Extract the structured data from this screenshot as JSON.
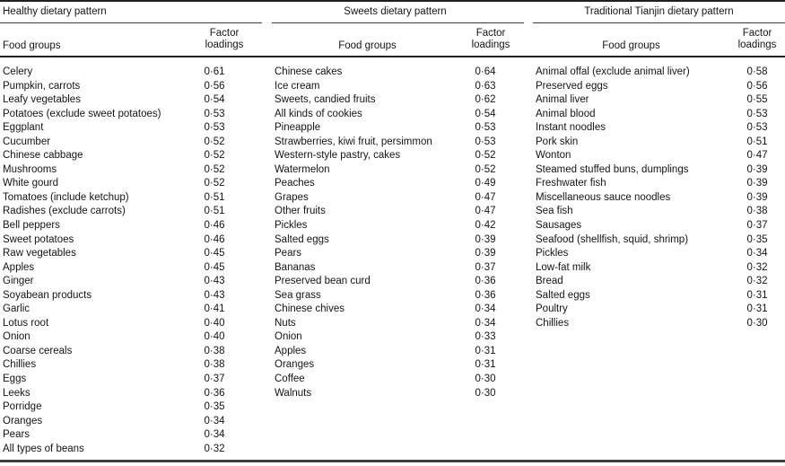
{
  "table": {
    "groups": [
      {
        "title": "Healthy dietary pattern",
        "food_header": "Food groups",
        "loading_header": "Factor loadings",
        "rows": [
          {
            "food": "Celery",
            "loading": "0·61"
          },
          {
            "food": "Pumpkin, carrots",
            "loading": "0·56"
          },
          {
            "food": "Leafy vegetables",
            "loading": "0·54"
          },
          {
            "food": "Potatoes (exclude sweet potatoes)",
            "loading": "0·53"
          },
          {
            "food": "Eggplant",
            "loading": "0·53"
          },
          {
            "food": "Cucumber",
            "loading": "0·52"
          },
          {
            "food": "Chinese cabbage",
            "loading": "0·52"
          },
          {
            "food": "Mushrooms",
            "loading": "0·52"
          },
          {
            "food": "White gourd",
            "loading": "0·52"
          },
          {
            "food": "Tomatoes (include ketchup)",
            "loading": "0·51"
          },
          {
            "food": "Radishes (exclude carrots)",
            "loading": "0·51"
          },
          {
            "food": "Bell peppers",
            "loading": "0·46"
          },
          {
            "food": "Sweet potatoes",
            "loading": "0·46"
          },
          {
            "food": "Raw vegetables",
            "loading": "0·45"
          },
          {
            "food": "Apples",
            "loading": "0·45"
          },
          {
            "food": "Ginger",
            "loading": "0·43"
          },
          {
            "food": "Soyabean products",
            "loading": "0·43"
          },
          {
            "food": "Garlic",
            "loading": "0·41"
          },
          {
            "food": "Lotus root",
            "loading": "0·40"
          },
          {
            "food": "Onion",
            "loading": "0·40"
          },
          {
            "food": "Coarse cereals",
            "loading": "0·38"
          },
          {
            "food": "Chillies",
            "loading": "0·38"
          },
          {
            "food": "Eggs",
            "loading": "0·37"
          },
          {
            "food": "Leeks",
            "loading": "0·36"
          },
          {
            "food": "Porridge",
            "loading": "0·35"
          },
          {
            "food": "Oranges",
            "loading": "0·34"
          },
          {
            "food": "Pears",
            "loading": "0·34"
          },
          {
            "food": "All types of beans",
            "loading": "0·32"
          }
        ]
      },
      {
        "title": "Sweets dietary pattern",
        "food_header": "Food groups",
        "loading_header": "Factor loadings",
        "rows": [
          {
            "food": "Chinese cakes",
            "loading": "0·64"
          },
          {
            "food": "Ice cream",
            "loading": "0·63"
          },
          {
            "food": "Sweets, candied fruits",
            "loading": "0·62"
          },
          {
            "food": "All kinds of cookies",
            "loading": "0·54"
          },
          {
            "food": "Pineapple",
            "loading": "0·53"
          },
          {
            "food": "Strawberries, kiwi fruit, persimmon",
            "loading": "0·53"
          },
          {
            "food": "Western-style pastry, cakes",
            "loading": "0·52"
          },
          {
            "food": "Watermelon",
            "loading": "0·52"
          },
          {
            "food": "Peaches",
            "loading": "0·49"
          },
          {
            "food": "Grapes",
            "loading": "0·47"
          },
          {
            "food": "Other fruits",
            "loading": "0·47"
          },
          {
            "food": "Pickles",
            "loading": "0·42"
          },
          {
            "food": "Salted eggs",
            "loading": "0·39"
          },
          {
            "food": "Pears",
            "loading": "0·39"
          },
          {
            "food": "Bananas",
            "loading": "0·37"
          },
          {
            "food": "Preserved bean curd",
            "loading": "0·36"
          },
          {
            "food": "Sea grass",
            "loading": "0·36"
          },
          {
            "food": "Chinese chives",
            "loading": "0·34"
          },
          {
            "food": "Nuts",
            "loading": "0·34"
          },
          {
            "food": "Onion",
            "loading": "0·33"
          },
          {
            "food": "Apples",
            "loading": "0·31"
          },
          {
            "food": "Oranges",
            "loading": "0·31"
          },
          {
            "food": "Coffee",
            "loading": "0·30"
          },
          {
            "food": "Walnuts",
            "loading": "0·30"
          }
        ]
      },
      {
        "title": "Traditional Tianjin dietary pattern",
        "food_header": "Food groups",
        "loading_header": "Factor loadings",
        "rows": [
          {
            "food": "Animal offal (exclude animal liver)",
            "loading": "0·58"
          },
          {
            "food": "Preserved eggs",
            "loading": "0·56"
          },
          {
            "food": "Animal liver",
            "loading": "0·55"
          },
          {
            "food": "Animal blood",
            "loading": "0·53"
          },
          {
            "food": "Instant noodles",
            "loading": "0·53"
          },
          {
            "food": "Pork skin",
            "loading": "0·51"
          },
          {
            "food": "Wonton",
            "loading": "0·47"
          },
          {
            "food": "Steamed stuffed buns, dumplings",
            "loading": "0·39"
          },
          {
            "food": "Freshwater fish",
            "loading": "0·39"
          },
          {
            "food": "Miscellaneous sauce noodles",
            "loading": "0·39"
          },
          {
            "food": "Sea fish",
            "loading": "0·38"
          },
          {
            "food": "Sausages",
            "loading": "0·37"
          },
          {
            "food": "Seafood (shellfish, squid, shrimp)",
            "loading": "0·35"
          },
          {
            "food": "Pickles",
            "loading": "0·34"
          },
          {
            "food": "Low-fat milk",
            "loading": "0·32"
          },
          {
            "food": "Bread",
            "loading": "0·32"
          },
          {
            "food": "Salted eggs",
            "loading": "0·31"
          },
          {
            "food": "Poultry",
            "loading": "0·31"
          },
          {
            "food": "Chillies",
            "loading": "0·30"
          }
        ]
      }
    ]
  },
  "colors": {
    "text": "#141414",
    "heavy_rule": "#1f1f1f",
    "thin_rule": "#3a3a3a",
    "bottom_rule": "#3f3f3f",
    "background": "#ffffff"
  }
}
